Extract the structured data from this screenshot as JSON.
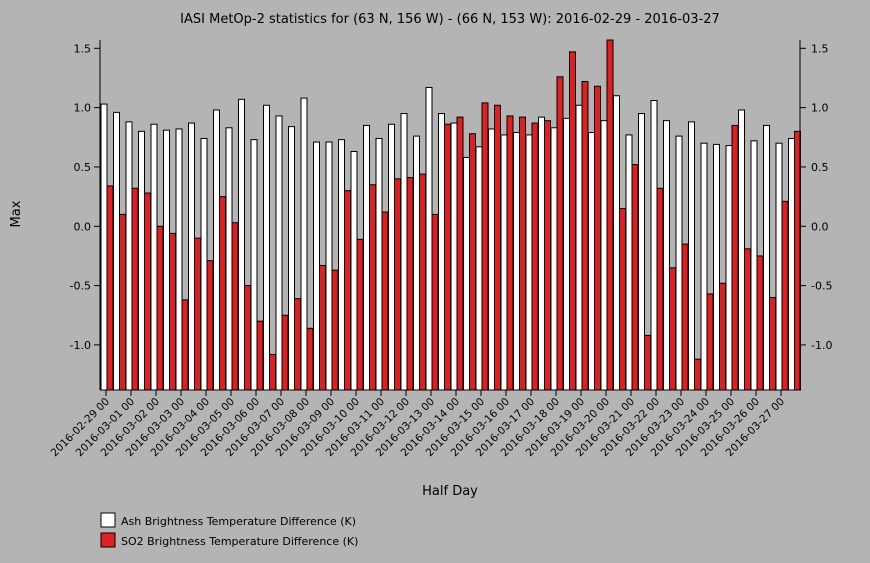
{
  "colors": {
    "background": "#b4b4b4",
    "ash": "#ffffff",
    "so2": "#e02020",
    "stroke": "#000000"
  },
  "chart_data": {
    "type": "bar",
    "title": "IASI MetOp-2 statistics for (63 N, 156 W) - (66 N, 153 W): 2016-02-29 - 2016-03-27",
    "xlabel": "Half Day",
    "ylabel": "Max",
    "ylim": [
      -1.38,
      1.57
    ],
    "yticks": [
      1.5,
      1.0,
      0.5,
      0.0,
      -0.5,
      -1.0
    ],
    "ytick_labels": [
      "1.5",
      "1.0",
      "0.5",
      "0.0",
      "-0.5",
      "-1.0"
    ],
    "xtick_labels": [
      "2016-02-29 00",
      "2016-03-01 00",
      "2016-03-02 00",
      "2016-03-03 00",
      "2016-03-04 00",
      "2016-03-05 00",
      "2016-03-06 00",
      "2016-03-07 00",
      "2016-03-08 00",
      "2016-03-09 00",
      "2016-03-10 00",
      "2016-03-11 00",
      "2016-03-12 00",
      "2016-03-13 00",
      "2016-03-14 00",
      "2016-03-15 00",
      "2016-03-16 00",
      "2016-03-17 00",
      "2016-03-18 00",
      "2016-03-19 00",
      "2016-03-20 00",
      "2016-03-21 00",
      "2016-03-22 00",
      "2016-03-23 00",
      "2016-03-24 00",
      "2016-03-25 00",
      "2016-03-26 00",
      "2016-03-27 00"
    ],
    "legend_position": "bottom-left",
    "series": [
      {
        "name": "Ash Brightness Temperature Difference (K)",
        "color": "#ffffff",
        "values": [
          1.03,
          0.96,
          0.88,
          0.8,
          0.86,
          0.81,
          0.82,
          0.87,
          0.74,
          0.98,
          0.83,
          1.07,
          0.73,
          1.02,
          0.93,
          0.84,
          1.08,
          0.71,
          0.71,
          0.73,
          0.63,
          0.85,
          0.74,
          0.86,
          0.95,
          0.76,
          1.17,
          0.95,
          0.87,
          0.58,
          0.67,
          0.82,
          0.77,
          0.79,
          0.77,
          0.92,
          0.83,
          0.91,
          1.02,
          0.79,
          0.89,
          1.1,
          0.77,
          0.95,
          1.06,
          0.89,
          0.76,
          0.88,
          0.7,
          0.69,
          0.68,
          0.98,
          0.72,
          0.85,
          0.7,
          0.74
        ]
      },
      {
        "name": "SO2 Brightness Temperature Difference (K)",
        "color": "#e02020",
        "values": [
          0.34,
          0.1,
          0.32,
          0.28,
          0.0,
          -0.06,
          -0.62,
          -0.1,
          -0.29,
          0.25,
          0.03,
          -0.5,
          -0.8,
          -1.08,
          -0.75,
          -0.61,
          -0.86,
          -0.33,
          -0.37,
          0.3,
          -0.11,
          0.35,
          0.12,
          0.4,
          0.41,
          0.44,
          0.1,
          0.86,
          0.92,
          0.78,
          1.04,
          1.02,
          0.93,
          0.92,
          0.87,
          0.89,
          1.26,
          1.47,
          1.22,
          1.18,
          1.57,
          0.15,
          0.52,
          -0.92,
          0.32,
          -0.35,
          -0.15,
          -1.12,
          -0.57,
          -0.48,
          0.85,
          -0.19,
          -0.25,
          -0.6,
          0.21,
          0.8
        ]
      }
    ]
  }
}
